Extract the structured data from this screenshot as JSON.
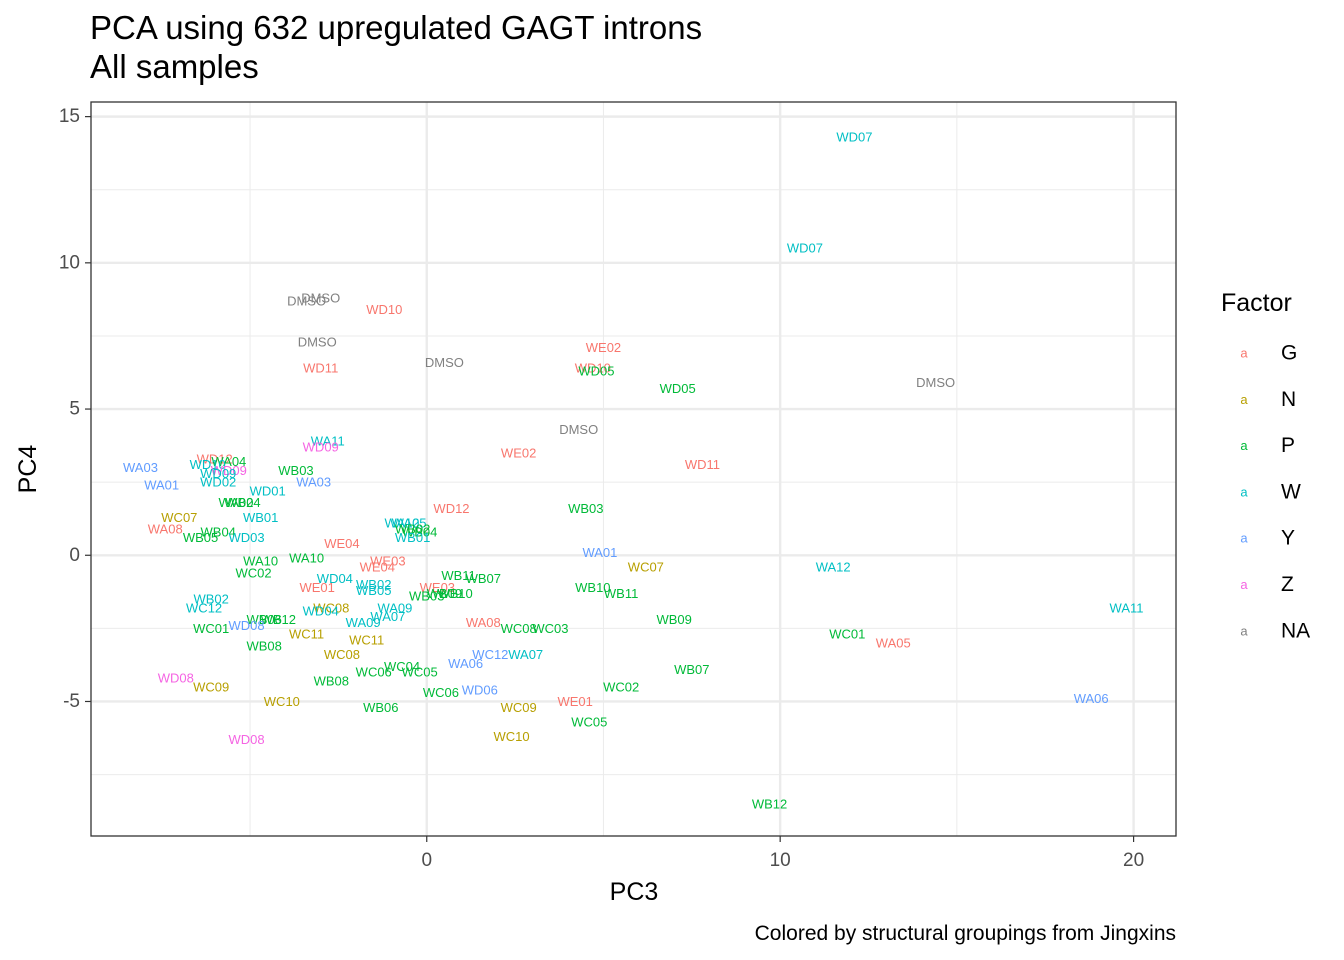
{
  "chart_data": {
    "type": "scatter",
    "title": "PCA using 632 upregulated GAGT introns",
    "subtitle": "All samples",
    "xlabel": "PC3",
    "ylabel": "PC4",
    "caption": "Colored by structural groupings from Jingxins",
    "xlim": [
      -9.5,
      21.2
    ],
    "ylim": [
      -9.6,
      15.5
    ],
    "x_ticks": [
      0,
      10,
      20
    ],
    "y_ticks": [
      -5,
      0,
      5,
      10,
      15
    ],
    "grid": true,
    "legend": {
      "title": "Factor",
      "position": "right",
      "key_glyph": "a",
      "entries": [
        {
          "label": "G",
          "color": "#F8766D"
        },
        {
          "label": "N",
          "color": "#B79F00"
        },
        {
          "label": "P",
          "color": "#00BA38"
        },
        {
          "label": "W",
          "color": "#00BFC4"
        },
        {
          "label": "Y",
          "color": "#619CFF"
        },
        {
          "label": "Z",
          "color": "#F564E3"
        },
        {
          "label": "NA",
          "color": "#808080"
        }
      ]
    },
    "points": [
      {
        "label": "WD07",
        "x": 12.1,
        "y": 14.3,
        "group": "W"
      },
      {
        "label": "WD07",
        "x": 10.7,
        "y": 10.5,
        "group": "W"
      },
      {
        "label": "DMSO",
        "x": -3.0,
        "y": 8.8,
        "group": "NA"
      },
      {
        "label": "DMSO",
        "x": -3.4,
        "y": 8.7,
        "group": "NA"
      },
      {
        "label": "WD10",
        "x": -1.2,
        "y": 8.4,
        "group": "G"
      },
      {
        "label": "DMSO",
        "x": -3.1,
        "y": 7.3,
        "group": "NA"
      },
      {
        "label": "WE02",
        "x": 5.0,
        "y": 7.1,
        "group": "G"
      },
      {
        "label": "DMSO",
        "x": 0.5,
        "y": 6.6,
        "group": "NA"
      },
      {
        "label": "WD11",
        "x": -3.0,
        "y": 6.4,
        "group": "G"
      },
      {
        "label": "WD10",
        "x": 4.7,
        "y": 6.4,
        "group": "G"
      },
      {
        "label": "WD05",
        "x": 4.8,
        "y": 6.3,
        "group": "P"
      },
      {
        "label": "DMSO",
        "x": 14.4,
        "y": 5.9,
        "group": "NA"
      },
      {
        "label": "WD05",
        "x": 7.1,
        "y": 5.7,
        "group": "P"
      },
      {
        "label": "DMSO",
        "x": 4.3,
        "y": 4.3,
        "group": "NA"
      },
      {
        "label": "WA11",
        "x": -2.8,
        "y": 3.9,
        "group": "W"
      },
      {
        "label": "WD09",
        "x": -3.0,
        "y": 3.7,
        "group": "Z"
      },
      {
        "label": "WE02",
        "x": 2.6,
        "y": 3.5,
        "group": "G"
      },
      {
        "label": "WD12",
        "x": -6.0,
        "y": 3.3,
        "group": "G"
      },
      {
        "label": "WA04",
        "x": -5.6,
        "y": 3.2,
        "group": "P"
      },
      {
        "label": "WD11",
        "x": 7.8,
        "y": 3.1,
        "group": "G"
      },
      {
        "label": "WD10",
        "x": -6.2,
        "y": 3.1,
        "group": "W"
      },
      {
        "label": "WA03",
        "x": -8.1,
        "y": 3.0,
        "group": "Y"
      },
      {
        "label": "WD09",
        "x": -5.6,
        "y": 2.9,
        "group": "Z"
      },
      {
        "label": "WB03",
        "x": -3.7,
        "y": 2.9,
        "group": "P"
      },
      {
        "label": "WD09",
        "x": -5.9,
        "y": 2.8,
        "group": "W"
      },
      {
        "label": "WD02",
        "x": -5.9,
        "y": 2.5,
        "group": "W"
      },
      {
        "label": "WA03",
        "x": -3.2,
        "y": 2.5,
        "group": "Y"
      },
      {
        "label": "WA01",
        "x": -7.5,
        "y": 2.4,
        "group": "Y"
      },
      {
        "label": "WD01",
        "x": -4.5,
        "y": 2.2,
        "group": "W"
      },
      {
        "label": "WB04",
        "x": -5.2,
        "y": 1.8,
        "group": "P"
      },
      {
        "label": "WA02",
        "x": -5.4,
        "y": 1.8,
        "group": "P"
      },
      {
        "label": "WB03",
        "x": 4.5,
        "y": 1.6,
        "group": "P"
      },
      {
        "label": "WD12",
        "x": 0.7,
        "y": 1.6,
        "group": "G"
      },
      {
        "label": "WB01",
        "x": -4.7,
        "y": 1.3,
        "group": "W"
      },
      {
        "label": "WC07",
        "x": -7.0,
        "y": 1.3,
        "group": "N"
      },
      {
        "label": "WA12",
        "x": -0.7,
        "y": 1.1,
        "group": "W"
      },
      {
        "label": "WA05",
        "x": -0.5,
        "y": 1.1,
        "group": "W"
      },
      {
        "label": "WA08",
        "x": -7.4,
        "y": 0.9,
        "group": "G"
      },
      {
        "label": "WB04",
        "x": -5.9,
        "y": 0.8,
        "group": "P"
      },
      {
        "label": "WB02",
        "x": -0.4,
        "y": 0.9,
        "group": "P"
      },
      {
        "label": "WB04",
        "x": -0.2,
        "y": 0.8,
        "group": "P"
      },
      {
        "label": "WB05",
        "x": -6.4,
        "y": 0.6,
        "group": "P"
      },
      {
        "label": "WD03",
        "x": -5.1,
        "y": 0.6,
        "group": "W"
      },
      {
        "label": "WB01",
        "x": -0.4,
        "y": 0.6,
        "group": "W"
      },
      {
        "label": "WE04",
        "x": -2.4,
        "y": 0.4,
        "group": "G"
      },
      {
        "label": "WA01",
        "x": 4.9,
        "y": 0.1,
        "group": "Y"
      },
      {
        "label": "WA10",
        "x": -3.4,
        "y": -0.1,
        "group": "P"
      },
      {
        "label": "WA10",
        "x": -4.7,
        "y": -0.2,
        "group": "P"
      },
      {
        "label": "WE03",
        "x": -1.1,
        "y": -0.2,
        "group": "G"
      },
      {
        "label": "WE04",
        "x": -1.4,
        "y": -0.4,
        "group": "G"
      },
      {
        "label": "WC07",
        "x": 6.2,
        "y": -0.4,
        "group": "N"
      },
      {
        "label": "WA12",
        "x": 11.5,
        "y": -0.4,
        "group": "W"
      },
      {
        "label": "WC02",
        "x": -4.9,
        "y": -0.6,
        "group": "P"
      },
      {
        "label": "WB11",
        "x": 0.9,
        "y": -0.7,
        "group": "P"
      },
      {
        "label": "WB07",
        "x": 1.6,
        "y": -0.8,
        "group": "P"
      },
      {
        "label": "WD04",
        "x": -2.6,
        "y": -0.8,
        "group": "W"
      },
      {
        "label": "WE01",
        "x": -3.1,
        "y": -1.1,
        "group": "G"
      },
      {
        "label": "WB02",
        "x": -1.5,
        "y": -1.0,
        "group": "W"
      },
      {
        "label": "WB10",
        "x": 4.7,
        "y": -1.1,
        "group": "P"
      },
      {
        "label": "WE03",
        "x": 0.3,
        "y": -1.1,
        "group": "G"
      },
      {
        "label": "WB05",
        "x": -1.5,
        "y": -1.2,
        "group": "W"
      },
      {
        "label": "WB09",
        "x": 0.5,
        "y": -1.3,
        "group": "P"
      },
      {
        "label": "WB10",
        "x": 0.8,
        "y": -1.3,
        "group": "P"
      },
      {
        "label": "WB11",
        "x": 5.5,
        "y": -1.3,
        "group": "P"
      },
      {
        "label": "WB03",
        "x": 0.0,
        "y": -1.4,
        "group": "P"
      },
      {
        "label": "WB02",
        "x": -6.1,
        "y": -1.5,
        "group": "W"
      },
      {
        "label": "WC08",
        "x": -2.7,
        "y": -1.8,
        "group": "N"
      },
      {
        "label": "WC12",
        "x": -6.3,
        "y": -1.8,
        "group": "W"
      },
      {
        "label": "WA09",
        "x": -0.9,
        "y": -1.8,
        "group": "W"
      },
      {
        "label": "WA11",
        "x": 19.8,
        "y": -1.8,
        "group": "W"
      },
      {
        "label": "WD04",
        "x": -3.0,
        "y": -1.9,
        "group": "W"
      },
      {
        "label": "WA07",
        "x": -1.1,
        "y": -2.1,
        "group": "W"
      },
      {
        "label": "WB06",
        "x": -4.6,
        "y": -2.2,
        "group": "P"
      },
      {
        "label": "WB12",
        "x": -4.2,
        "y": -2.2,
        "group": "P"
      },
      {
        "label": "WB09",
        "x": 7.0,
        "y": -2.2,
        "group": "P"
      },
      {
        "label": "WA09",
        "x": -1.8,
        "y": -2.3,
        "group": "W"
      },
      {
        "label": "WA08",
        "x": 1.6,
        "y": -2.3,
        "group": "G"
      },
      {
        "label": "WD08",
        "x": -5.1,
        "y": -2.4,
        "group": "Y"
      },
      {
        "label": "WC01",
        "x": -6.1,
        "y": -2.5,
        "group": "P"
      },
      {
        "label": "WC08",
        "x": 2.6,
        "y": -2.5,
        "group": "P"
      },
      {
        "label": "WC03",
        "x": 3.5,
        "y": -2.5,
        "group": "P"
      },
      {
        "label": "WC11",
        "x": -3.4,
        "y": -2.7,
        "group": "N"
      },
      {
        "label": "WC01",
        "x": 11.9,
        "y": -2.7,
        "group": "P"
      },
      {
        "label": "WC11",
        "x": -1.7,
        "y": -2.9,
        "group": "N"
      },
      {
        "label": "WA05",
        "x": 13.2,
        "y": -3.0,
        "group": "G"
      },
      {
        "label": "WB08",
        "x": -4.6,
        "y": -3.1,
        "group": "P"
      },
      {
        "label": "WC08",
        "x": -2.4,
        "y": -3.4,
        "group": "N"
      },
      {
        "label": "WC12",
        "x": 1.8,
        "y": -3.4,
        "group": "Y"
      },
      {
        "label": "WA07",
        "x": 2.8,
        "y": -3.4,
        "group": "W"
      },
      {
        "label": "WA06",
        "x": 1.1,
        "y": -3.7,
        "group": "Y"
      },
      {
        "label": "WC04",
        "x": -0.7,
        "y": -3.8,
        "group": "P"
      },
      {
        "label": "WB07",
        "x": 7.5,
        "y": -3.9,
        "group": "P"
      },
      {
        "label": "WC06",
        "x": -1.5,
        "y": -4.0,
        "group": "P"
      },
      {
        "label": "WC05",
        "x": -0.2,
        "y": -4.0,
        "group": "P"
      },
      {
        "label": "WD08",
        "x": -7.1,
        "y": -4.2,
        "group": "Z"
      },
      {
        "label": "WB08",
        "x": -2.7,
        "y": -4.3,
        "group": "P"
      },
      {
        "label": "WC09",
        "x": -6.1,
        "y": -4.5,
        "group": "N"
      },
      {
        "label": "WC02",
        "x": 5.5,
        "y": -4.5,
        "group": "P"
      },
      {
        "label": "WD06",
        "x": 1.5,
        "y": -4.6,
        "group": "Y"
      },
      {
        "label": "WC06",
        "x": 0.4,
        "y": -4.7,
        "group": "P"
      },
      {
        "label": "WA06",
        "x": 18.8,
        "y": -4.9,
        "group": "Y"
      },
      {
        "label": "WC10",
        "x": -4.1,
        "y": -5.0,
        "group": "N"
      },
      {
        "label": "WE01",
        "x": 4.2,
        "y": -5.0,
        "group": "G"
      },
      {
        "label": "WB06",
        "x": -1.3,
        "y": -5.2,
        "group": "P"
      },
      {
        "label": "WC09",
        "x": 2.6,
        "y": -5.2,
        "group": "N"
      },
      {
        "label": "WC05",
        "x": 4.6,
        "y": -5.7,
        "group": "P"
      },
      {
        "label": "WC10",
        "x": 2.4,
        "y": -6.2,
        "group": "N"
      },
      {
        "label": "WD08",
        "x": -5.1,
        "y": -6.3,
        "group": "Z"
      },
      {
        "label": "WB12",
        "x": 9.7,
        "y": -8.5,
        "group": "P"
      }
    ]
  }
}
